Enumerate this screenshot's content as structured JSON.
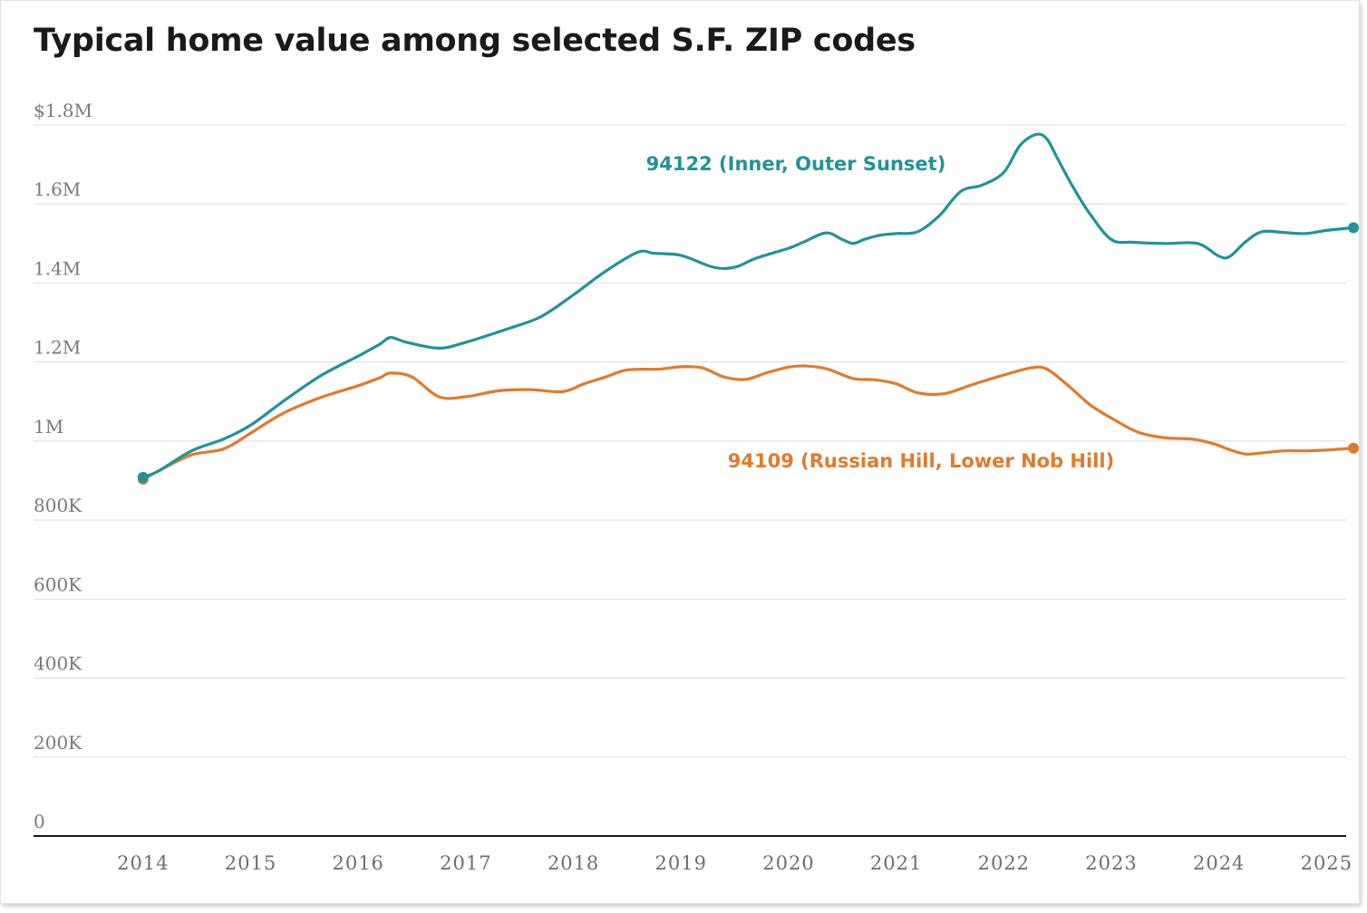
{
  "chart_data": {
    "type": "line",
    "title": "Typical home value among selected S.F. ZIP codes",
    "xlabel": "",
    "ylabel": "",
    "ylim": [
      0,
      1800000
    ],
    "xlim": [
      2013.1,
      2025.3
    ],
    "y_ticks": [
      {
        "value": 0,
        "label": "0"
      },
      {
        "value": 200000,
        "label": "200K"
      },
      {
        "value": 400000,
        "label": "400K"
      },
      {
        "value": 600000,
        "label": "600K"
      },
      {
        "value": 800000,
        "label": "800K"
      },
      {
        "value": 1000000,
        "label": "1M"
      },
      {
        "value": 1200000,
        "label": "1.2M"
      },
      {
        "value": 1400000,
        "label": "1.4M"
      },
      {
        "value": 1600000,
        "label": "1.6M"
      },
      {
        "value": 1800000,
        "label": "$1.8M"
      }
    ],
    "x_ticks": [
      "2014",
      "2015",
      "2016",
      "2017",
      "2018",
      "2019",
      "2020",
      "2021",
      "2022",
      "2023",
      "2024",
      "2025"
    ],
    "grid": true,
    "series": [
      {
        "name": "94122 (Inner, Outer Sunset)",
        "color": "#1f9399",
        "x": [
          2014.0,
          2014.15,
          2014.45,
          2014.75,
          2015.0,
          2015.3,
          2015.65,
          2016.0,
          2016.2,
          2016.3,
          2016.45,
          2016.75,
          2017.0,
          2017.4,
          2017.7,
          2018.0,
          2018.3,
          2018.6,
          2018.75,
          2019.0,
          2019.3,
          2019.5,
          2019.7,
          2020.0,
          2020.15,
          2020.35,
          2020.5,
          2020.6,
          2020.7,
          2020.85,
          2021.0,
          2021.2,
          2021.4,
          2021.6,
          2021.8,
          2022.0,
          2022.15,
          2022.3,
          2022.4,
          2022.5,
          2022.65,
          2022.8,
          2023.0,
          2023.2,
          2023.5,
          2023.8,
          2024.0,
          2024.1,
          2024.25,
          2024.4,
          2024.6,
          2024.8,
          2025.0,
          2025.25
        ],
        "values": [
          908000,
          925000,
          975000,
          1005000,
          1040000,
          1100000,
          1165000,
          1215000,
          1245000,
          1262000,
          1250000,
          1235000,
          1250000,
          1285000,
          1315000,
          1370000,
          1430000,
          1478000,
          1475000,
          1470000,
          1440000,
          1440000,
          1463000,
          1488000,
          1505000,
          1527000,
          1510000,
          1500000,
          1510000,
          1521000,
          1525000,
          1530000,
          1570000,
          1632000,
          1648000,
          1680000,
          1748000,
          1776000,
          1765000,
          1715000,
          1640000,
          1575000,
          1510000,
          1503000,
          1500000,
          1500000,
          1468000,
          1467000,
          1505000,
          1530000,
          1528000,
          1525000,
          1533000,
          1540000
        ]
      },
      {
        "name": "94109 (Russian Hill, Lower Nob Hill)",
        "color": "#e07b2a",
        "x": [
          2014.0,
          2014.15,
          2014.45,
          2014.75,
          2015.0,
          2015.3,
          2015.65,
          2016.0,
          2016.2,
          2016.3,
          2016.5,
          2016.75,
          2017.0,
          2017.3,
          2017.6,
          2017.9,
          2018.1,
          2018.3,
          2018.5,
          2018.8,
          2019.0,
          2019.2,
          2019.4,
          2019.6,
          2019.8,
          2020.0,
          2020.15,
          2020.35,
          2020.6,
          2020.8,
          2021.0,
          2021.2,
          2021.45,
          2021.7,
          2022.0,
          2022.25,
          2022.4,
          2022.6,
          2022.8,
          2023.0,
          2023.25,
          2023.5,
          2023.75,
          2023.95,
          2024.1,
          2024.25,
          2024.4,
          2024.6,
          2024.8,
          2025.0,
          2025.25
        ],
        "values": [
          903000,
          925000,
          965000,
          980000,
          1020000,
          1070000,
          1110000,
          1140000,
          1160000,
          1172000,
          1162000,
          1112000,
          1112000,
          1127000,
          1130000,
          1125000,
          1145000,
          1162000,
          1180000,
          1182000,
          1188000,
          1185000,
          1162000,
          1156000,
          1173000,
          1187000,
          1190000,
          1183000,
          1158000,
          1155000,
          1145000,
          1122000,
          1120000,
          1142000,
          1167000,
          1185000,
          1182000,
          1140000,
          1092000,
          1058000,
          1022000,
          1008000,
          1005000,
          993000,
          978000,
          967000,
          970000,
          975000,
          975000,
          977000,
          982000
        ]
      }
    ]
  }
}
